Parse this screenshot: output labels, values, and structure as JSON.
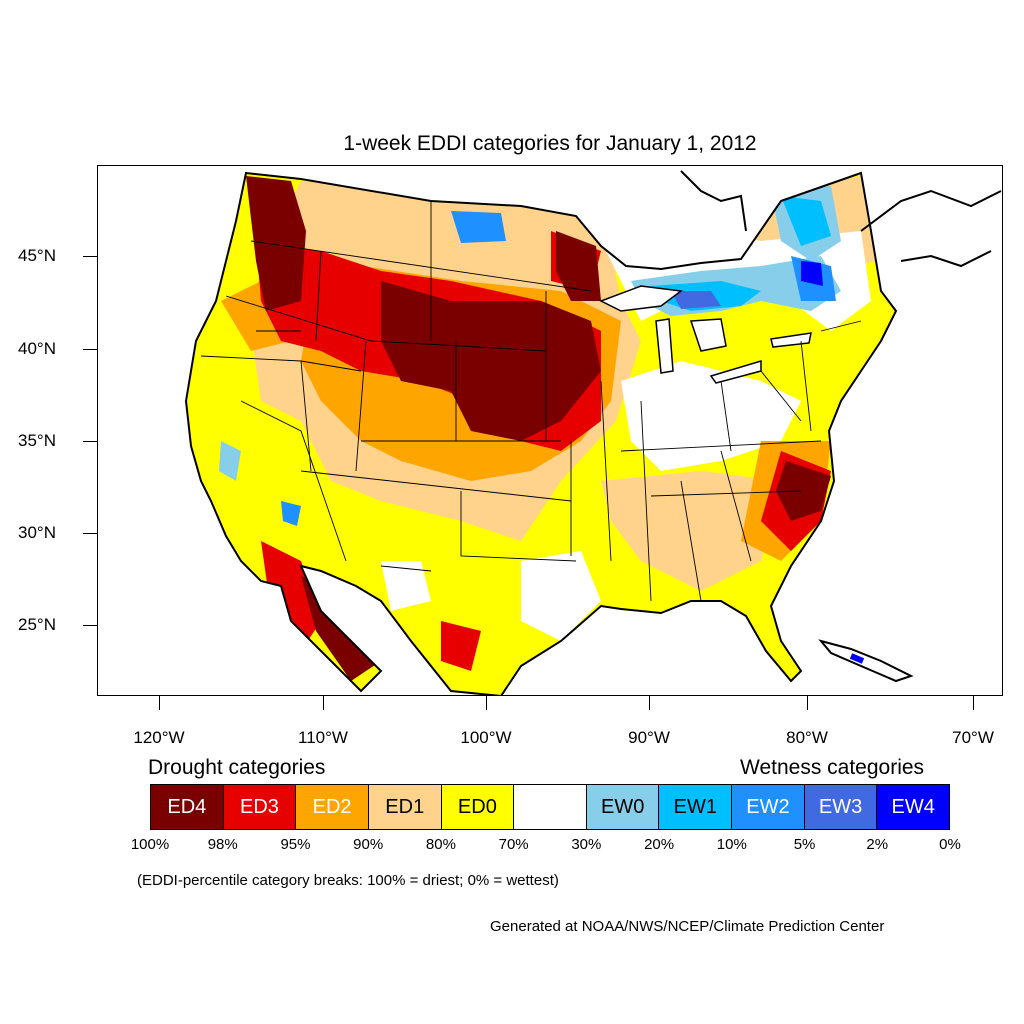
{
  "title": "1-week EDDI categories for January 1, 2012",
  "lat_labels": [
    "45°N",
    "40°N",
    "35°N",
    "30°N",
    "25°N"
  ],
  "lon_labels": [
    "120°W",
    "110°W",
    "100°W",
    "90°W",
    "80°W",
    "70°W"
  ],
  "legend": {
    "drought_title": "Drought categories",
    "wetness_title": "Wetness categories",
    "categories": [
      {
        "label": "ED4",
        "color": "#7a0000",
        "text_color": "#ffffff"
      },
      {
        "label": "ED3",
        "color": "#e60000",
        "text_color": "#ffffff"
      },
      {
        "label": "ED2",
        "color": "#ffa500",
        "text_color": "#ffffff"
      },
      {
        "label": "ED1",
        "color": "#ffd38c",
        "text_color": "#000000"
      },
      {
        "label": "ED0",
        "color": "#ffff00",
        "text_color": "#000000"
      },
      {
        "label": "",
        "color": "#ffffff",
        "text_color": "#000000"
      },
      {
        "label": "EW0",
        "color": "#87ceeb",
        "text_color": "#000000"
      },
      {
        "label": "EW1",
        "color": "#00bfff",
        "text_color": "#000000"
      },
      {
        "label": "EW2",
        "color": "#1e90ff",
        "text_color": "#ffffff"
      },
      {
        "label": "EW3",
        "color": "#4169e1",
        "text_color": "#ffffff"
      },
      {
        "label": "EW4",
        "color": "#0000ff",
        "text_color": "#ffffff"
      }
    ],
    "breaks": [
      "100%",
      "98%",
      "95%",
      "90%",
      "80%",
      "70%",
      "30%",
      "20%",
      "10%",
      "5%",
      "2%",
      "0%"
    ]
  },
  "note": "(EDDI-percentile category breaks: 100% = driest; 0% = wettest)",
  "credit": "Generated at NOAA/NWS/NCEP/Climate Prediction Center"
}
